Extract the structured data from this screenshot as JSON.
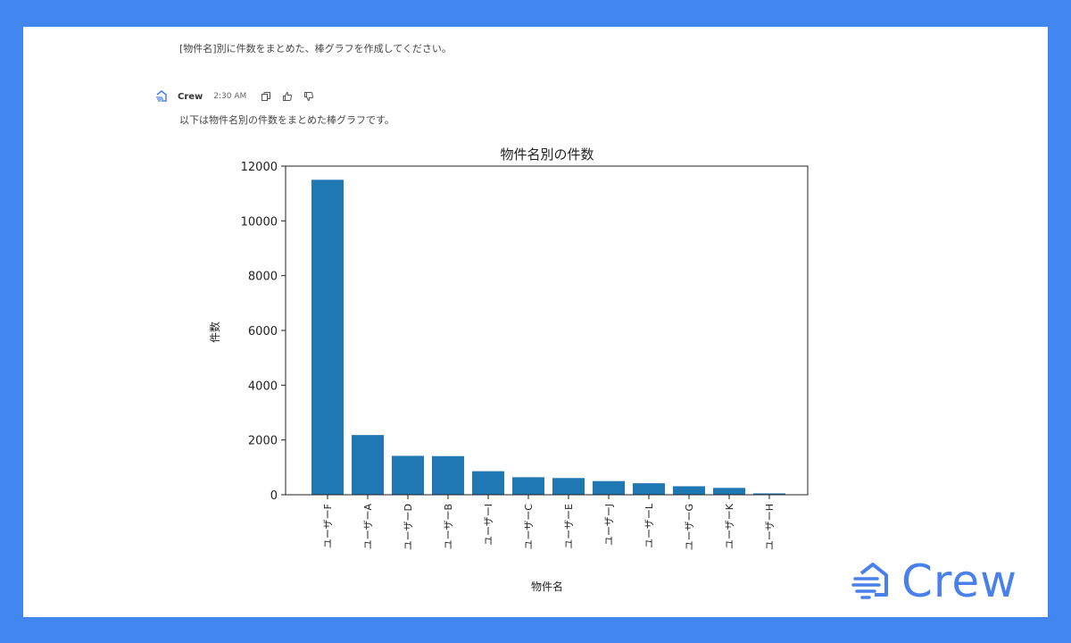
{
  "conversation": {
    "user_message": "[物件名]別に件数をまとめた、棒グラフを作成してください。",
    "assistant": {
      "sender": "Crew",
      "time": "2:30 AM",
      "message": "以下は物件名別の件数をまとめた棒グラフです。",
      "actions": [
        "copy-icon",
        "thumbs-up-icon",
        "thumbs-down-icon"
      ]
    }
  },
  "brand": {
    "name": "Crew",
    "color": "#4a80ec",
    "background": "#4286f0"
  },
  "chart_data": {
    "type": "bar",
    "title": "物件名別の件数",
    "xlabel": "物件名",
    "ylabel": "件数",
    "categories": [
      "ユーザーF",
      "ユーザーA",
      "ユーザーD",
      "ユーザーB",
      "ユーザーI",
      "ユーザーC",
      "ユーザーE",
      "ユーザーJ",
      "ユーザーL",
      "ユーザーG",
      "ユーザーK",
      "ユーザーH"
    ],
    "values": [
      11500,
      2180,
      1420,
      1410,
      860,
      640,
      610,
      500,
      420,
      310,
      250,
      50
    ],
    "ylim": [
      0,
      12000
    ],
    "yticks": [
      0,
      2000,
      4000,
      6000,
      8000,
      10000,
      12000
    ],
    "bar_color": "#1f77b4",
    "grid": false,
    "legend": "none"
  }
}
